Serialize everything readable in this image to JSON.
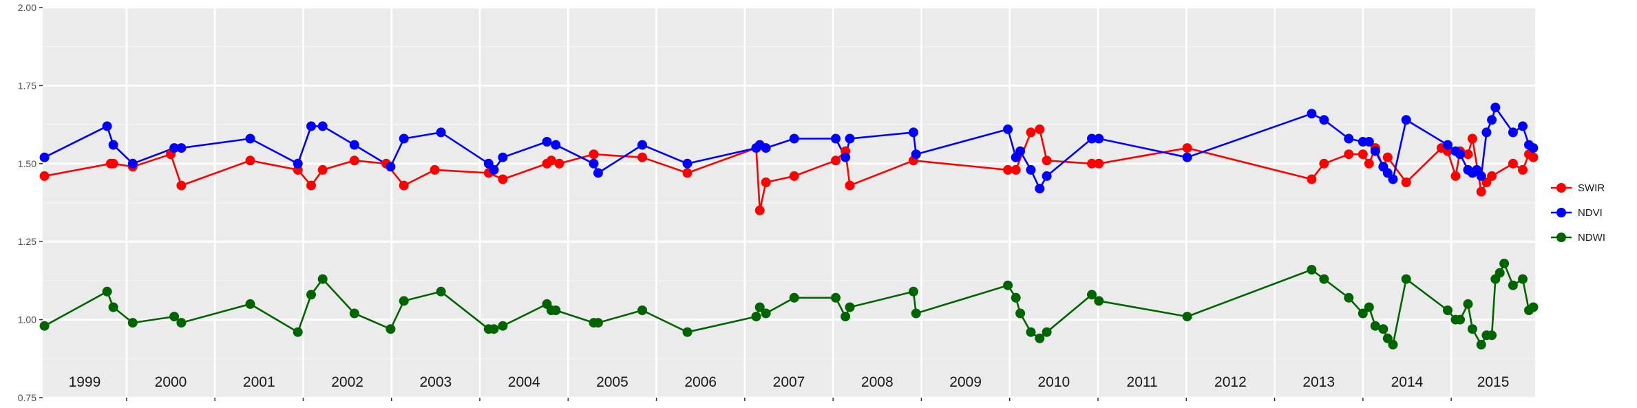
{
  "chart_data": {
    "type": "line",
    "title": "",
    "xlabel": "",
    "ylabel": "",
    "xlim": [
      1998.55,
      2015.45
    ],
    "ylim": [
      0.75,
      2.0
    ],
    "y_ticks": [
      "0.75",
      "1.00",
      "1.25",
      "1.50",
      "1.75",
      "2.00"
    ],
    "y_tick_values": [
      0.75,
      1.0,
      1.25,
      1.5,
      1.75,
      2.0
    ],
    "year_labels": [
      "1999",
      "2000",
      "2001",
      "2002",
      "2003",
      "2004",
      "2005",
      "2006",
      "2007",
      "2008",
      "2009",
      "2010",
      "2011",
      "2012",
      "2013",
      "2014",
      "2015"
    ],
    "year_boundaries": [
      1999.5,
      2000.5,
      2001.5,
      2002.5,
      2003.5,
      2004.5,
      2005.5,
      2006.5,
      2007.5,
      2008.5,
      2009.5,
      2010.5,
      2011.5,
      2012.5,
      2013.5,
      2014.5
    ],
    "grid": true,
    "legend_position": "right",
    "series": [
      {
        "name": "SWIR",
        "color": "#ff0000",
        "points": [
          [
            1998.57,
            1.46
          ],
          [
            1999.32,
            1.5
          ],
          [
            1999.35,
            1.5
          ],
          [
            1999.57,
            1.49
          ],
          [
            2000.0,
            1.53
          ],
          [
            2000.12,
            1.43
          ],
          [
            2000.9,
            1.51
          ],
          [
            2001.44,
            1.48
          ],
          [
            2001.59,
            1.43
          ],
          [
            2001.72,
            1.48
          ],
          [
            2002.08,
            1.51
          ],
          [
            2002.44,
            1.5
          ],
          [
            2002.64,
            1.43
          ],
          [
            2002.99,
            1.48
          ],
          [
            2003.6,
            1.47
          ],
          [
            2003.76,
            1.45
          ],
          [
            2004.26,
            1.5
          ],
          [
            2004.31,
            1.51
          ],
          [
            2004.4,
            1.5
          ],
          [
            2004.79,
            1.53
          ],
          [
            2005.34,
            1.52
          ],
          [
            2005.85,
            1.47
          ],
          [
            2006.63,
            1.55
          ],
          [
            2006.67,
            1.35
          ],
          [
            2006.74,
            1.44
          ],
          [
            2007.06,
            1.46
          ],
          [
            2007.53,
            1.51
          ],
          [
            2007.64,
            1.54
          ],
          [
            2007.69,
            1.43
          ],
          [
            2008.41,
            1.51
          ],
          [
            2009.48,
            1.48
          ],
          [
            2009.57,
            1.48
          ],
          [
            2009.74,
            1.6
          ],
          [
            2009.84,
            1.61
          ],
          [
            2009.92,
            1.51
          ],
          [
            2010.43,
            1.5
          ],
          [
            2010.51,
            1.5
          ],
          [
            2011.51,
            1.55
          ],
          [
            2012.92,
            1.45
          ],
          [
            2013.06,
            1.5
          ],
          [
            2013.34,
            1.53
          ],
          [
            2013.5,
            1.53
          ],
          [
            2013.57,
            1.5
          ],
          [
            2013.64,
            1.55
          ],
          [
            2013.73,
            1.49
          ],
          [
            2013.78,
            1.52
          ],
          [
            2013.99,
            1.44
          ],
          [
            2014.39,
            1.55
          ],
          [
            2014.46,
            1.54
          ],
          [
            2014.55,
            1.46
          ],
          [
            2014.6,
            1.54
          ],
          [
            2014.69,
            1.53
          ],
          [
            2014.74,
            1.58
          ],
          [
            2014.84,
            1.41
          ],
          [
            2014.9,
            1.44
          ],
          [
            2014.96,
            1.46
          ],
          [
            2015.2,
            1.5
          ],
          [
            2015.31,
            1.48
          ],
          [
            2015.38,
            1.53
          ],
          [
            2015.43,
            1.52
          ]
        ]
      },
      {
        "name": "NDVI",
        "color": "#0000ff",
        "points": [
          [
            1998.57,
            1.52
          ],
          [
            1999.28,
            1.62
          ],
          [
            1999.35,
            1.56
          ],
          [
            1999.57,
            1.5
          ],
          [
            2000.04,
            1.55
          ],
          [
            2000.12,
            1.55
          ],
          [
            2000.9,
            1.58
          ],
          [
            2001.44,
            1.5
          ],
          [
            2001.59,
            1.62
          ],
          [
            2001.72,
            1.62
          ],
          [
            2002.08,
            1.56
          ],
          [
            2002.49,
            1.49
          ],
          [
            2002.64,
            1.58
          ],
          [
            2003.06,
            1.6
          ],
          [
            2003.6,
            1.5
          ],
          [
            2003.66,
            1.48
          ],
          [
            2003.76,
            1.52
          ],
          [
            2004.26,
            1.57
          ],
          [
            2004.36,
            1.56
          ],
          [
            2004.79,
            1.5
          ],
          [
            2004.84,
            1.47
          ],
          [
            2005.34,
            1.56
          ],
          [
            2005.85,
            1.5
          ],
          [
            2006.63,
            1.55
          ],
          [
            2006.67,
            1.56
          ],
          [
            2006.74,
            1.55
          ],
          [
            2007.06,
            1.58
          ],
          [
            2007.53,
            1.58
          ],
          [
            2007.64,
            1.52
          ],
          [
            2007.69,
            1.58
          ],
          [
            2008.41,
            1.6
          ],
          [
            2008.44,
            1.53
          ],
          [
            2009.48,
            1.61
          ],
          [
            2009.57,
            1.52
          ],
          [
            2009.62,
            1.54
          ],
          [
            2009.74,
            1.48
          ],
          [
            2009.84,
            1.42
          ],
          [
            2009.92,
            1.46
          ],
          [
            2010.43,
            1.58
          ],
          [
            2010.51,
            1.58
          ],
          [
            2011.51,
            1.52
          ],
          [
            2012.92,
            1.66
          ],
          [
            2013.06,
            1.64
          ],
          [
            2013.34,
            1.58
          ],
          [
            2013.5,
            1.57
          ],
          [
            2013.57,
            1.57
          ],
          [
            2013.64,
            1.54
          ],
          [
            2013.73,
            1.49
          ],
          [
            2013.78,
            1.47
          ],
          [
            2013.84,
            1.45
          ],
          [
            2013.99,
            1.64
          ],
          [
            2014.46,
            1.56
          ],
          [
            2014.55,
            1.54
          ],
          [
            2014.6,
            1.53
          ],
          [
            2014.69,
            1.48
          ],
          [
            2014.74,
            1.47
          ],
          [
            2014.79,
            1.48
          ],
          [
            2014.84,
            1.46
          ],
          [
            2014.9,
            1.6
          ],
          [
            2014.96,
            1.64
          ],
          [
            2015.0,
            1.68
          ],
          [
            2015.2,
            1.6
          ],
          [
            2015.31,
            1.62
          ],
          [
            2015.38,
            1.56
          ],
          [
            2015.43,
            1.55
          ]
        ]
      },
      {
        "name": "NDWI",
        "color": "#006400",
        "points": [
          [
            1998.57,
            0.98
          ],
          [
            1999.28,
            1.09
          ],
          [
            1999.35,
            1.04
          ],
          [
            1999.57,
            0.99
          ],
          [
            2000.04,
            1.01
          ],
          [
            2000.12,
            0.99
          ],
          [
            2000.9,
            1.05
          ],
          [
            2001.44,
            0.96
          ],
          [
            2001.59,
            1.08
          ],
          [
            2001.72,
            1.13
          ],
          [
            2002.08,
            1.02
          ],
          [
            2002.49,
            0.97
          ],
          [
            2002.64,
            1.06
          ],
          [
            2003.06,
            1.09
          ],
          [
            2003.6,
            0.97
          ],
          [
            2003.66,
            0.97
          ],
          [
            2003.76,
            0.98
          ],
          [
            2004.26,
            1.05
          ],
          [
            2004.31,
            1.03
          ],
          [
            2004.36,
            1.03
          ],
          [
            2004.79,
            0.99
          ],
          [
            2004.84,
            0.99
          ],
          [
            2005.34,
            1.03
          ],
          [
            2005.85,
            0.96
          ],
          [
            2006.63,
            1.01
          ],
          [
            2006.67,
            1.04
          ],
          [
            2006.74,
            1.02
          ],
          [
            2007.06,
            1.07
          ],
          [
            2007.53,
            1.07
          ],
          [
            2007.64,
            1.01
          ],
          [
            2007.69,
            1.04
          ],
          [
            2008.41,
            1.09
          ],
          [
            2008.44,
            1.02
          ],
          [
            2009.48,
            1.11
          ],
          [
            2009.57,
            1.07
          ],
          [
            2009.62,
            1.02
          ],
          [
            2009.74,
            0.96
          ],
          [
            2009.84,
            0.94
          ],
          [
            2009.92,
            0.96
          ],
          [
            2010.43,
            1.08
          ],
          [
            2010.51,
            1.06
          ],
          [
            2011.51,
            1.01
          ],
          [
            2012.92,
            1.16
          ],
          [
            2013.06,
            1.13
          ],
          [
            2013.34,
            1.07
          ],
          [
            2013.5,
            1.02
          ],
          [
            2013.57,
            1.04
          ],
          [
            2013.64,
            0.98
          ],
          [
            2013.73,
            0.97
          ],
          [
            2013.78,
            0.94
          ],
          [
            2013.84,
            0.92
          ],
          [
            2013.99,
            1.13
          ],
          [
            2014.46,
            1.03
          ],
          [
            2014.55,
            1.0
          ],
          [
            2014.6,
            1.0
          ],
          [
            2014.69,
            1.05
          ],
          [
            2014.74,
            0.97
          ],
          [
            2014.84,
            0.92
          ],
          [
            2014.9,
            0.95
          ],
          [
            2014.96,
            0.95
          ],
          [
            2015.0,
            1.13
          ],
          [
            2015.05,
            1.15
          ],
          [
            2015.1,
            1.18
          ],
          [
            2015.2,
            1.11
          ],
          [
            2015.31,
            1.13
          ],
          [
            2015.38,
            1.03
          ],
          [
            2015.43,
            1.04
          ]
        ]
      }
    ]
  }
}
